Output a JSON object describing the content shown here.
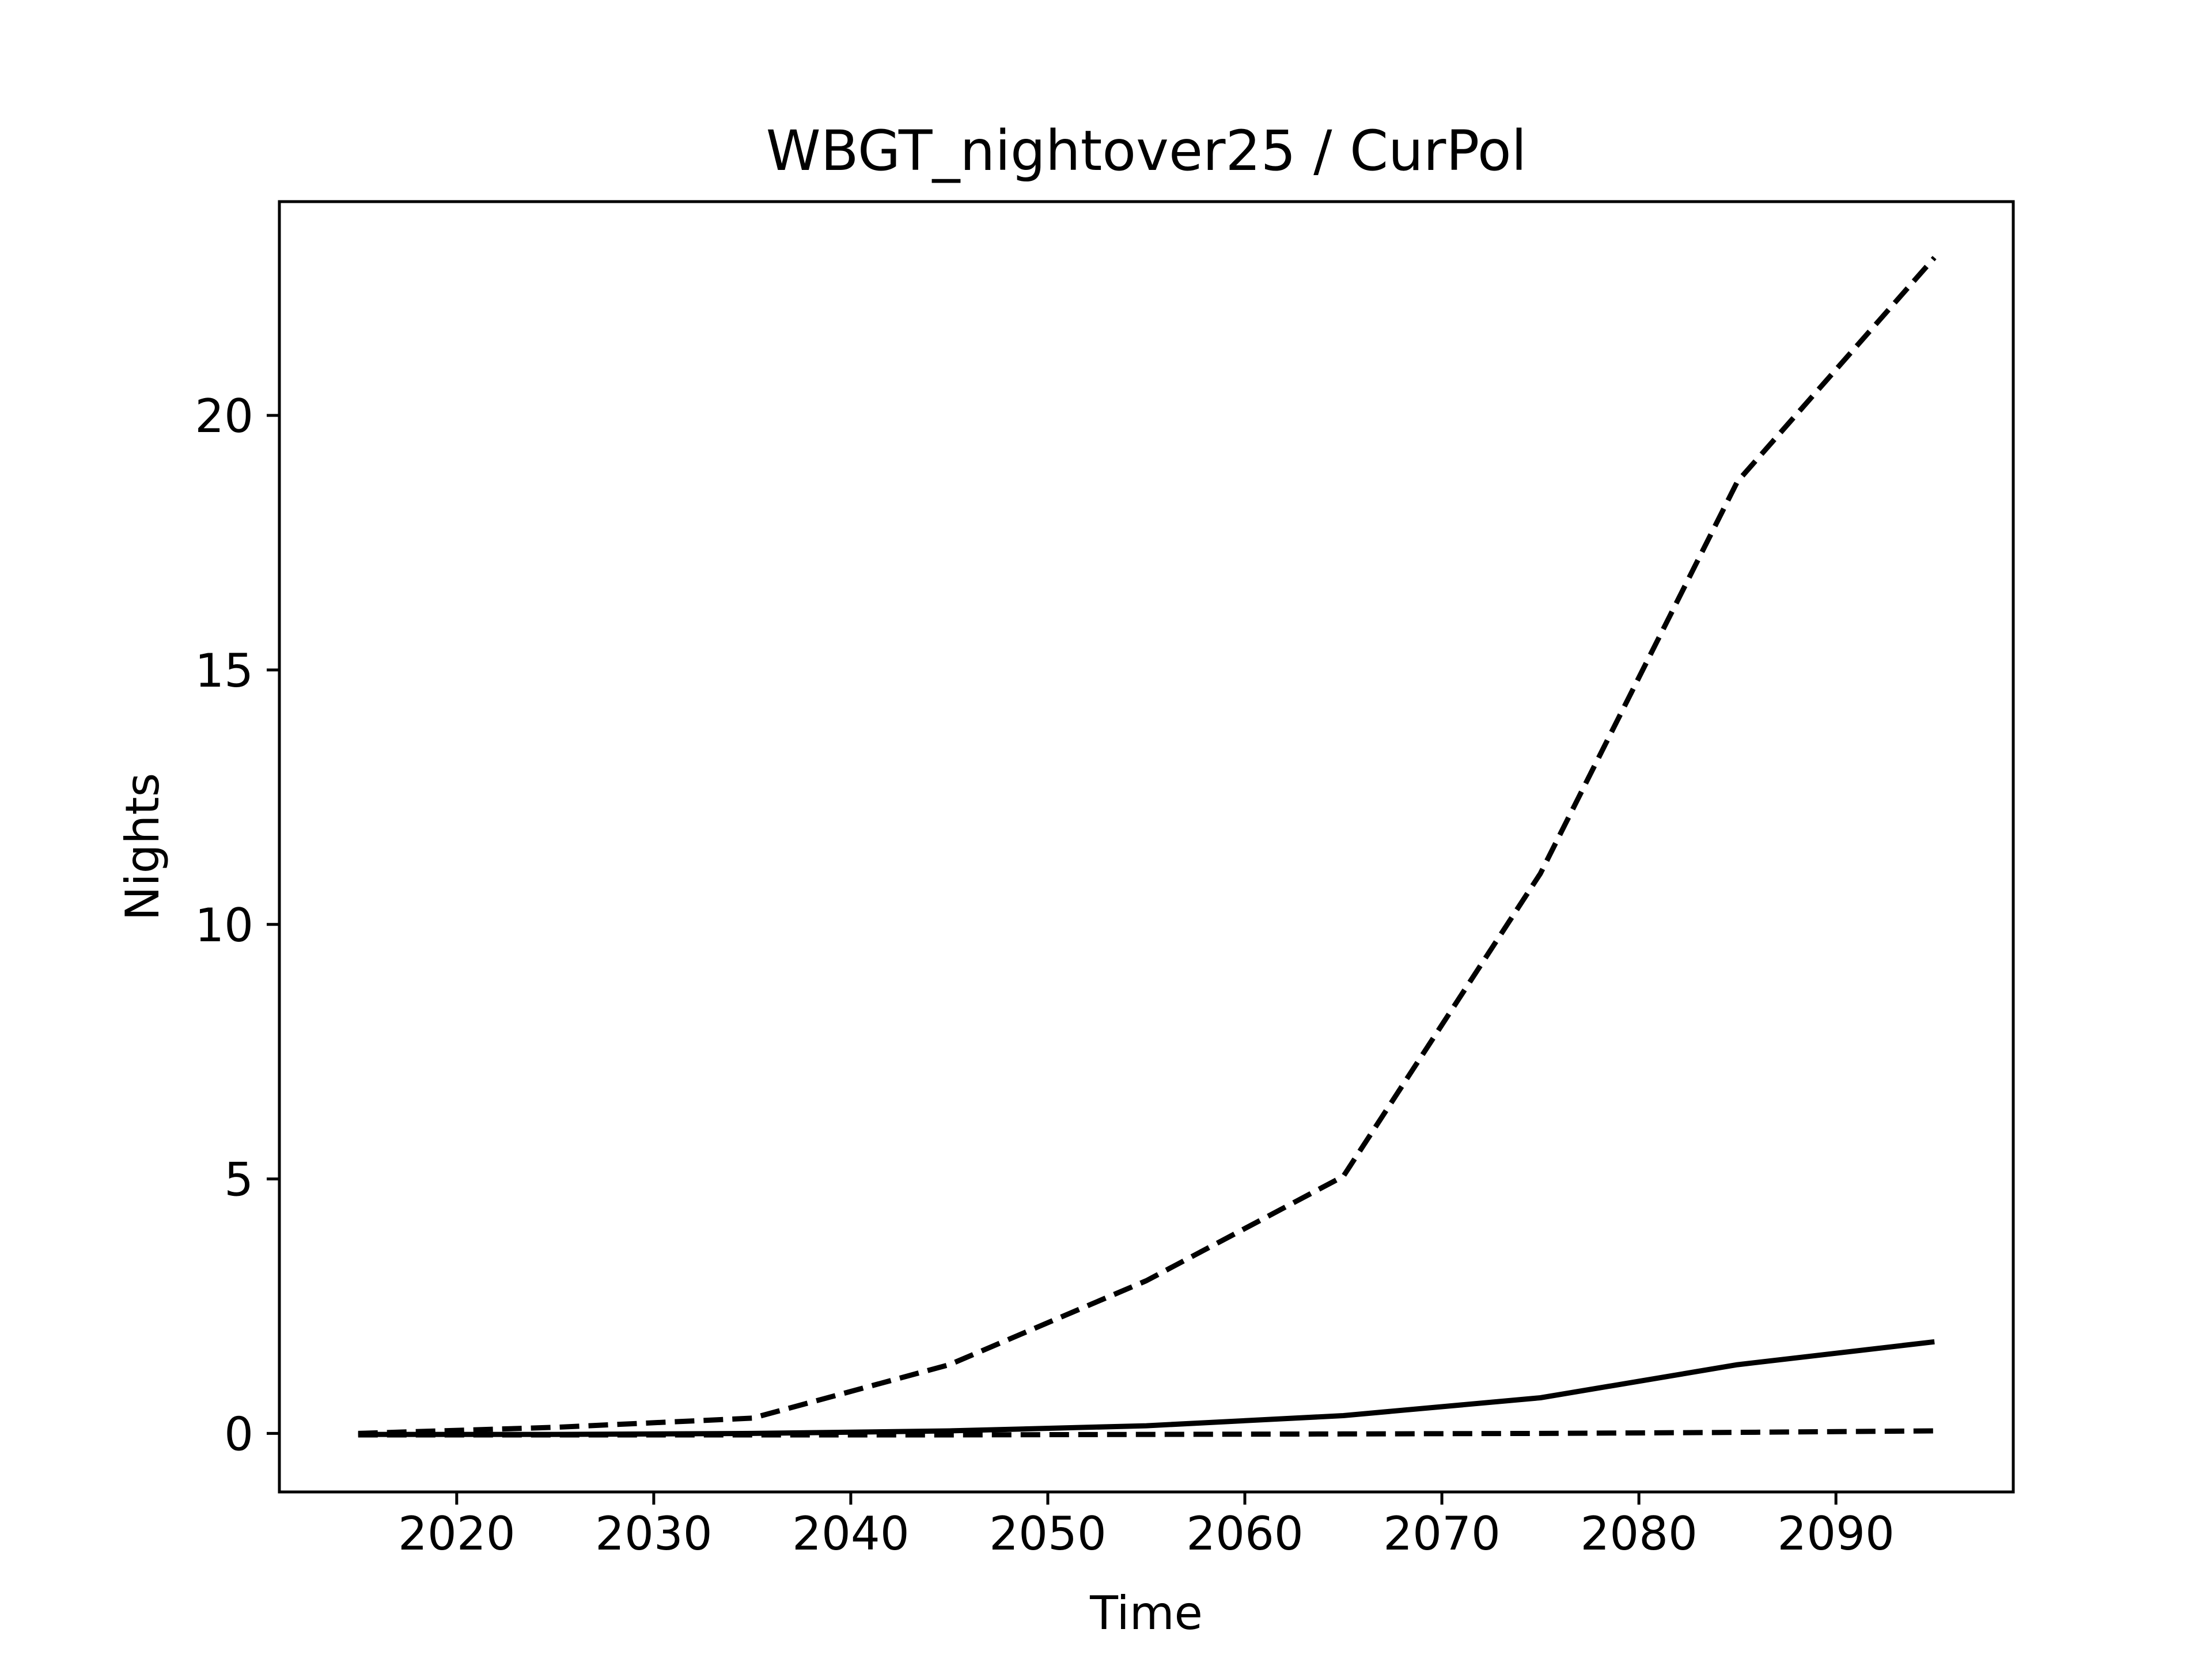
{
  "chart_data": {
    "type": "line",
    "title": "WBGT_nightover25 / CurPol",
    "xlabel": "Time",
    "ylabel": "Nights",
    "xlim": [
      2011,
      2099
    ],
    "ylim": [
      -1.15,
      24.2
    ],
    "xticks": [
      2020,
      2030,
      2040,
      2050,
      2060,
      2070,
      2080,
      2090
    ],
    "yticks": [
      0,
      5,
      10,
      15,
      20
    ],
    "grid": false,
    "legend": "none",
    "x": [
      2015,
      2025,
      2035,
      2045,
      2055,
      2065,
      2075,
      2085,
      2095
    ],
    "series": [
      {
        "style": "dashed",
        "color": "#000000",
        "values": [
          0.0,
          0.12,
          0.3,
          1.35,
          3.0,
          5.05,
          11.0,
          18.7,
          23.1
        ]
      },
      {
        "style": "solid",
        "color": "#000000",
        "values": [
          -0.02,
          -0.02,
          0.0,
          0.05,
          0.15,
          0.35,
          0.7,
          1.35,
          1.8
        ]
      },
      {
        "style": "dashed",
        "color": "#000000",
        "values": [
          -0.03,
          -0.03,
          -0.03,
          -0.03,
          -0.02,
          -0.01,
          0.0,
          0.02,
          0.05
        ]
      }
    ]
  }
}
